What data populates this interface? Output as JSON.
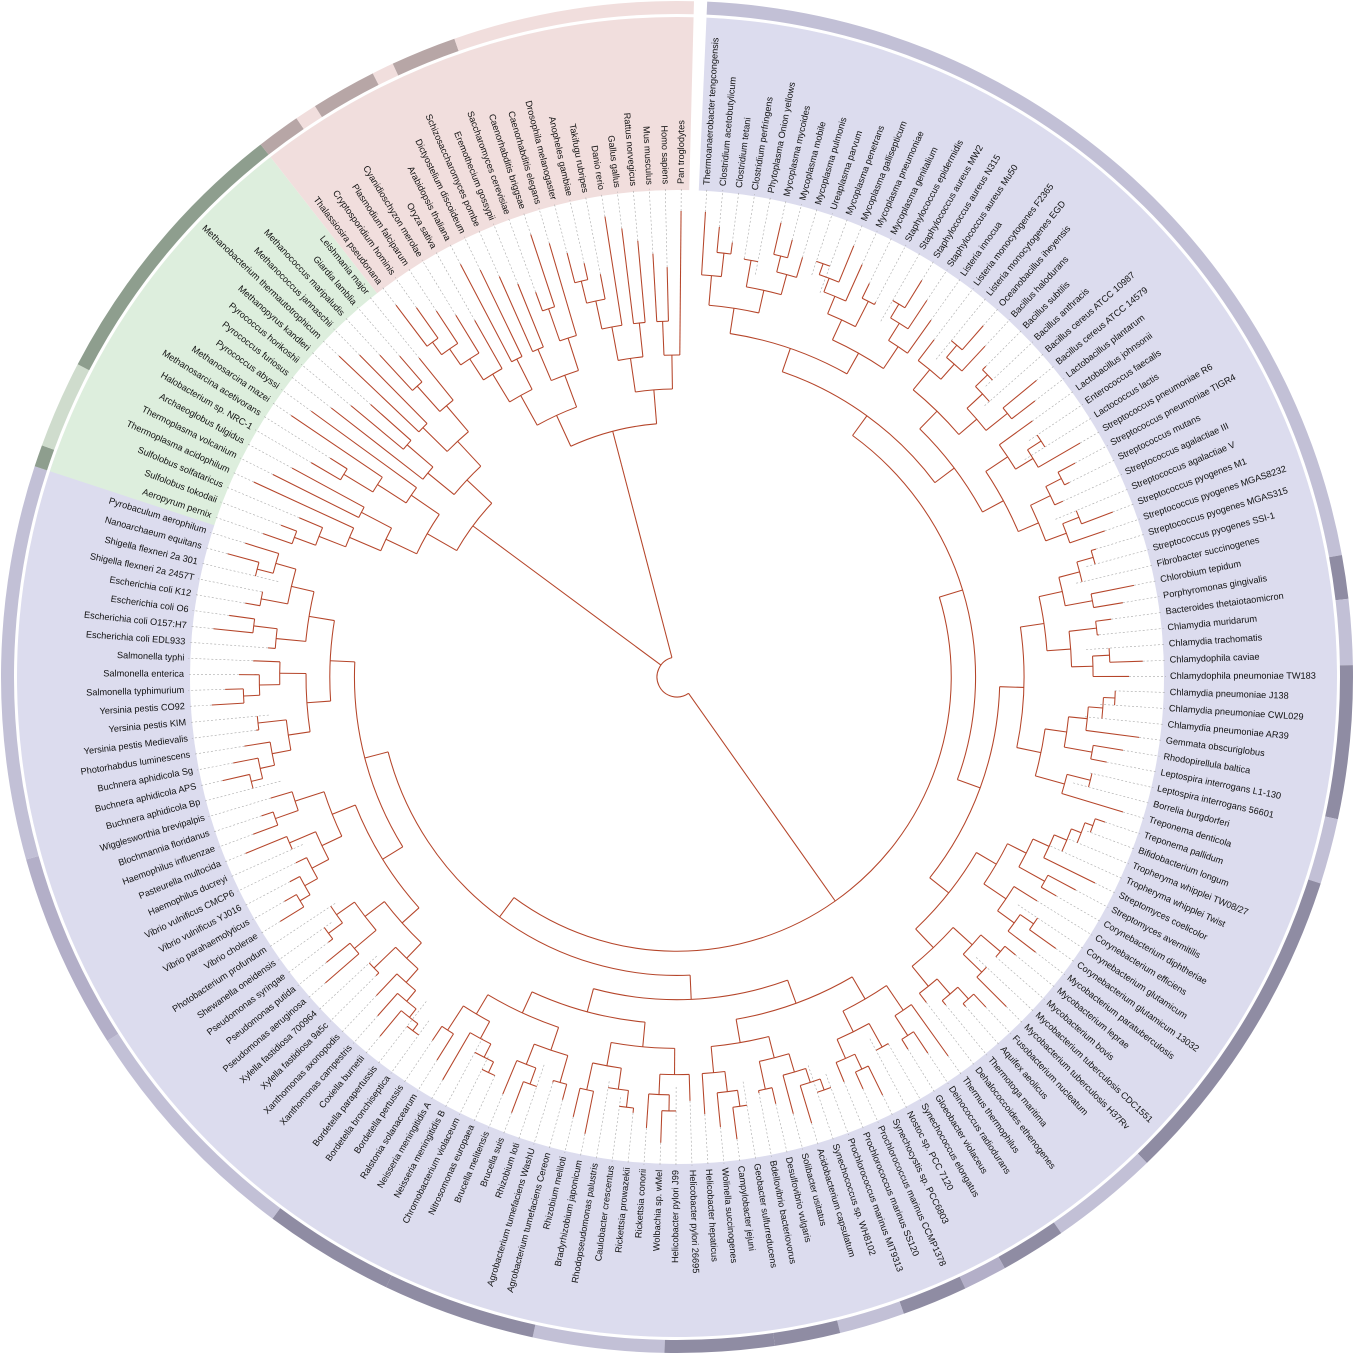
{
  "figure": {
    "title": "",
    "colors": {
      "bacteria_sector": "#dcdcee",
      "eukaryota_sector": "#f1dedd",
      "archaea_sector": "#ddeedd",
      "branch": "#b5452a",
      "leader": "#a8a8a8",
      "outer_ring_light": "#c2c0d6",
      "outer_ring_mid": "#b3afc8",
      "outer_ring_dark": "#8f8ca3",
      "outer_ring_rose": "#b7a6a6",
      "outer_ring_green": "#8e9e8e",
      "outer_ring_green_light": "#cfdccd"
    }
  },
  "leaves": [
    "Thermoanaerobacter tengcongensis",
    "Clostridium acetobutylicum",
    "Clostridium tetani",
    "Clostridium perfringens",
    "Phytoplasma Onion yellows",
    "Mycoplasma mycoides",
    "Mycoplasma mobile",
    "Mycoplasma pulmonis",
    "Ureaplasma parvum",
    "Mycoplasma penetrans",
    "Mycoplasma gallisepticum",
    "Mycoplasma pneumoniae",
    "Mycoplasma genitalium",
    "Staphylococcus epidermidis",
    "Staphylococcus aureus MW2",
    "Staphylococcus aureus N315",
    "Staphylococcus aureus Mu50",
    "Listeria innocua",
    "Listeria monocytogenes F2365",
    "Listeria monocytogenes EGD",
    "Oceanobacillus iheyensis",
    "Bacillus halodurans",
    "Bacillus subtilis",
    "Bacillus anthracis",
    "Bacillus cereus ATCC 10987",
    "Bacillus cereus ATCC 14579",
    "Lactobacillus plantarum",
    "Lactobacillus johnsonii",
    "Enterococcus faecalis",
    "Lactococcus lactis",
    "Streptococcus pneumoniae R6",
    "Streptococcus pneumoniae TIGR4",
    "Streptococcus mutans",
    "Streptococcus agalactiae III",
    "Streptococcus agalactiae V",
    "Streptococcus pyogenes M1",
    "Streptococcus pyogenes MGAS8232",
    "Streptococcus pyogenes MGAS315",
    "Streptococcus pyogenes SSI-1",
    "Fibrobacter succinogenes",
    "Chlorobium tepidum",
    "Porphyromonas gingivalis",
    "Bacteroides thetaiotaomicron",
    "Chlamydia muridarum",
    "Chlamydia trachomatis",
    "Chlamydophila caviae",
    "Chlamydophila pneumoniae TW183",
    "Chlamydia pneumoniae J138",
    "Chlamydia pneumoniae CWL029",
    "Chlamydia pneumoniae AR39",
    "Gemmata obscuriglobus",
    "Rhodopirellula baltica",
    "Leptospira interrogans L1-130",
    "Leptospira interrogans 56601",
    "Borrelia burgdorferi",
    "Treponema denticola",
    "Treponema pallidum",
    "Bifidobacterium longum",
    "Tropheryma whipplei TW08/27",
    "Tropheryma whipplei Twist",
    "Streptomyces coelicolor",
    "Streptomyces avermitilis",
    "Corynebacterium diphtheriae",
    "Corynebacterium efficiens",
    "Corynebacterium glutamicum",
    "Corynebacterium glutamicum 13032",
    "Mycobacterium paratuberculosis",
    "Mycobacterium leprae",
    "Mycobacterium bovis",
    "Mycobacterium tuberculosis CDC1551",
    "Mycobacterium tuberculosis H37Rv",
    "Fusobacterium nucleatum",
    "Aquifex aeolicus",
    "Thermotoga maritima",
    "Dehalococcoides ethenogenes",
    "Thermus thermophilus",
    "Deinococcus radiodurans",
    "Gloeobacter violaceus",
    "Synechococcus elongatus",
    "Nostoc sp. PCC 7120",
    "Synechocystis sp. PCC6803",
    "Prochlorococcus marinus CCMP1378",
    "Prochlorococcus marinus SS120",
    "Prochlorococcus marinus MIT9313",
    "Synechococcus sp. WH8102",
    "Acidobacterium capsulatum",
    "Solibacter usitatus",
    "Desulfovibrio vulgaris",
    "Bdellovibrio bacteriovorus",
    "Geobacter sulfurreducens",
    "Campylobacter jejuni",
    "Wolinella succinogenes",
    "Helicobacter hepaticus",
    "Helicobacter pylori 26695",
    "Helicobacter pylori J99",
    "Wolbachia sp. wMel",
    "Rickettsia conorii",
    "Rickettsia prowazekii",
    "Caulobacter crescentus",
    "Rhodopseudomonas palustris",
    "Bradyrhizobium japonicum",
    "Rhizobium meliloti",
    "Agrobacterium tumefaciens Cereon",
    "Agrobacterium tumefaciens WashU",
    "Rhizobium loti",
    "Brucella suis",
    "Brucella melitensis",
    "Nitrosomonas europaea",
    "Chromobacterium violaceum",
    "Neisseria meningitidis B",
    "Neisseria meningitidis A",
    "Ralstonia solanacearum",
    "Bordetella pertussis",
    "Bordetella bronchiseptica",
    "Bordetella parapertussis",
    "Coxiella burnetii",
    "Xanthomonas campestris",
    "Xanthomonas axonopodis",
    "Xylella fastidiosa 9a5c",
    "Xylella fastidiosa 700964",
    "Pseudomonas aeruginosa",
    "Pseudomonas putida",
    "Pseudomonas syringae",
    "Shewanella oneidensis",
    "Photobacterium profundum",
    "Vibrio cholerae",
    "Vibrio parahaemolyticus",
    "Vibrio vulnificus YJ016",
    "Vibrio vulnificus CMCP6",
    "Haemophilus ducreyi",
    "Pasteurella multocida",
    "Haemophilus influenzae",
    "Blochmannia floridanus",
    "Wigglesworthia brevipalpis",
    "Buchnera aphidicola Bp",
    "Buchnera aphidicola APS",
    "Buchnera aphidicola Sg",
    "Photorhabdus luminescens",
    "Yersinia pestis Medievalis",
    "Yersinia pestis KIM",
    "Yersinia pestis CO92",
    "Salmonella typhimurium",
    "Salmonella enterica",
    "Salmonella typhi",
    "Escherichia coli EDL933",
    "Escherichia coli O157:H7",
    "Escherichia coli O6",
    "Escherichia coli K12",
    "Shigella flexneri 2a 2457T",
    "Shigella flexneri 2a 301",
    "Nanoarchaeum equitans",
    "Pyrobaculum aerophilum",
    "Aeropyrum pernix",
    "Sulfolobus tokodaii",
    "Sulfolobus solfataricus",
    "Thermoplasma acidophilum",
    "Thermoplasma volcanium",
    "Archaeoglobus fulgidus",
    "Halobacterium sp. NRC-1",
    "Methanosarcina acetivorans",
    "Methanosarcina mazei",
    "Pyrococcus abyssi",
    "Pyrococcus furiosus",
    "Pyrococcus horikoshii",
    "Methanopyrus kandleri",
    "Methanobacterium thermautotrophicum",
    "Methanococcus jannaschii",
    "Methanococcus maripaludis",
    "Giardia lamblia",
    "Leishmania major",
    "Thalassiosira pseudonana",
    "Cryptosporidium hominis",
    "Plasmodium falciparum",
    "Cyanidioschyzon merolae",
    "Oryza sativa",
    "Arabidopsis thaliana",
    "Dictyostelium discoideum",
    "Schizosaccharomyces pombe",
    "Eremothecium gossypii",
    "Saccharomyces cerevisiae",
    "Caenorhabditis briggsae",
    "Caenorhabditis elegans",
    "Drosophila melanogaster",
    "Anopheles gambiae",
    "Takifugu rubripes",
    "Danio rerio",
    "Gallus gallus",
    "Rattus norvegicus",
    "Mus musculus",
    "Homo sapiens",
    "Pan troglodytes"
  ]
}
